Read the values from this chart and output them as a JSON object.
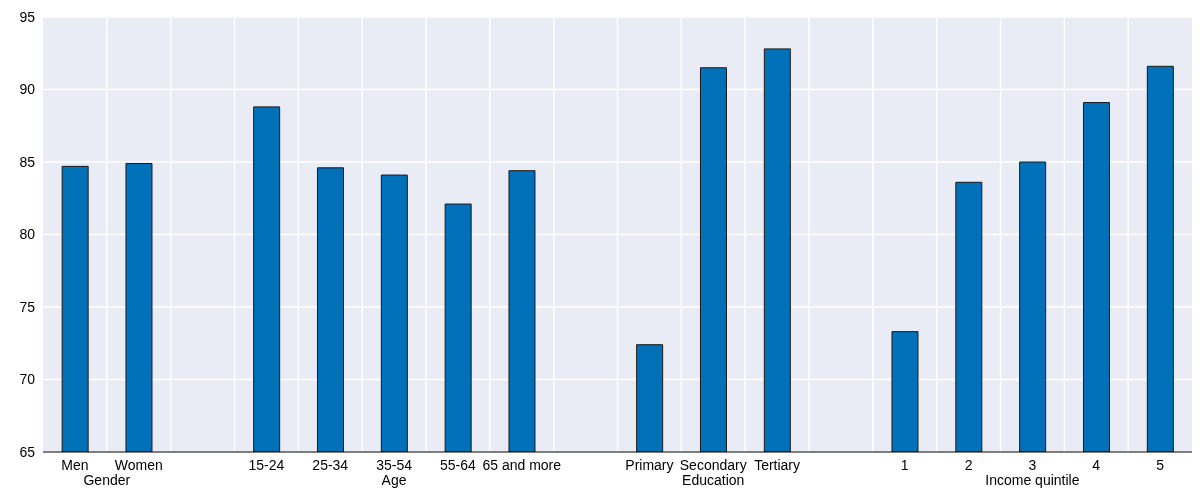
{
  "chart_data": {
    "type": "bar",
    "categories": [
      "Men",
      "Women",
      null,
      "15-24",
      "25-34",
      "35-54",
      "55-64",
      "65 and more",
      null,
      "Primary",
      "Secondary",
      "Tertiary",
      null,
      "1",
      "2",
      "3",
      "4",
      "5"
    ],
    "values": [
      84.7,
      84.9,
      null,
      88.8,
      84.6,
      84.1,
      82.1,
      84.4,
      null,
      72.4,
      91.5,
      92.8,
      null,
      73.3,
      83.6,
      85.0,
      89.1,
      91.6
    ],
    "color": "#0070b8",
    "ylim": [
      65,
      95
    ],
    "yticks": [
      65,
      70,
      75,
      80,
      85,
      90,
      95
    ],
    "grid": true,
    "annotations": [
      "Gender",
      "Age",
      "Education",
      "Income quintile"
    ]
  }
}
